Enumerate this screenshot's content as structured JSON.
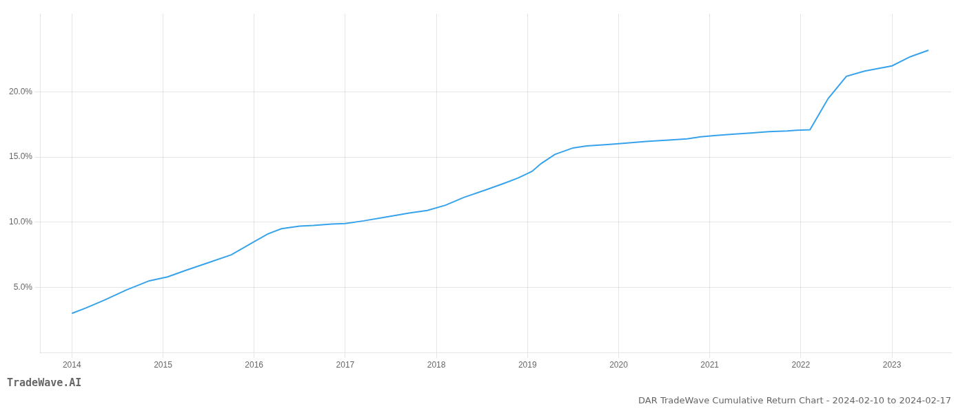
{
  "chart_data": {
    "type": "line",
    "title": "DAR TradeWave Cumulative Return Chart - 2024-02-10 to 2024-02-17",
    "annotations": [
      {
        "text": "TradeWave.AI"
      }
    ],
    "x": [
      2014.0,
      2014.15,
      2014.35,
      2014.6,
      2014.85,
      2015.05,
      2015.25,
      2015.5,
      2015.75,
      2016.0,
      2016.15,
      2016.3,
      2016.5,
      2016.65,
      2016.85,
      2017.0,
      2017.2,
      2017.45,
      2017.7,
      2017.9,
      2018.1,
      2018.3,
      2018.55,
      2018.75,
      2018.9,
      2019.05,
      2019.15,
      2019.3,
      2019.5,
      2019.65,
      2019.85,
      2020.05,
      2020.3,
      2020.55,
      2020.75,
      2020.9,
      2021.05,
      2021.25,
      2021.45,
      2021.65,
      2021.85,
      2021.95,
      2022.1,
      2022.3,
      2022.5,
      2022.7,
      2022.85,
      2023.0,
      2023.2,
      2023.4
    ],
    "values": [
      3.0,
      3.4,
      4.0,
      4.8,
      5.5,
      5.8,
      6.3,
      6.9,
      7.5,
      8.5,
      9.1,
      9.5,
      9.7,
      9.75,
      9.85,
      9.9,
      10.1,
      10.4,
      10.7,
      10.9,
      11.3,
      11.9,
      12.5,
      13.0,
      13.4,
      13.9,
      14.5,
      15.2,
      15.7,
      15.85,
      15.95,
      16.05,
      16.2,
      16.3,
      16.4,
      16.55,
      16.65,
      16.75,
      16.85,
      16.95,
      17.0,
      17.05,
      17.1,
      19.5,
      21.2,
      21.6,
      21.8,
      22.0,
      22.7,
      23.2
    ],
    "xlim": [
      2013.65,
      2023.65
    ],
    "ylim": [
      0,
      26
    ],
    "xticks": [
      2014,
      2015,
      2016,
      2017,
      2018,
      2019,
      2020,
      2021,
      2022,
      2023
    ],
    "yticks": [
      {
        "value": 5.0,
        "label": "5.0%"
      },
      {
        "value": 10.0,
        "label": "10.0%"
      },
      {
        "value": 15.0,
        "label": "15.0%"
      },
      {
        "value": 20.0,
        "label": "20.0%"
      }
    ],
    "grid": true
  }
}
